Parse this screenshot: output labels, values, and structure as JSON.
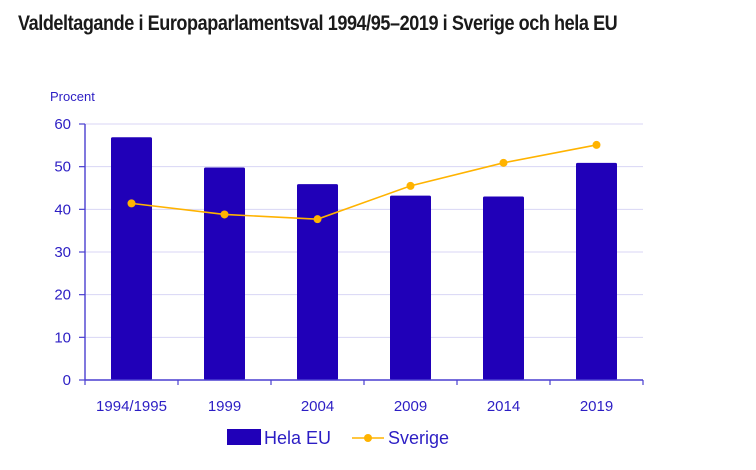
{
  "chart_data": {
    "type": "bar",
    "title": "Valdeltagande i Europaparlamentsval 1994/95–2019 i Sverige och hela EU",
    "ylabel": "Procent",
    "xlabel": "",
    "ylim": [
      0,
      60
    ],
    "yticks": [
      0,
      10,
      20,
      30,
      40,
      50,
      60
    ],
    "grid": true,
    "legend_position": "bottom",
    "categories": [
      "1994/1995",
      "1999",
      "2004",
      "2009",
      "2014",
      "2019"
    ],
    "series": [
      {
        "name": "Hela EU",
        "type": "bar",
        "color": "#2000b8",
        "values": [
          56.9,
          49.8,
          45.9,
          43.2,
          43.0,
          50.9
        ]
      },
      {
        "name": "Sverige",
        "type": "line",
        "color": "#ffb300",
        "values": [
          41.4,
          38.8,
          37.7,
          45.5,
          50.9,
          55.1
        ]
      }
    ]
  }
}
